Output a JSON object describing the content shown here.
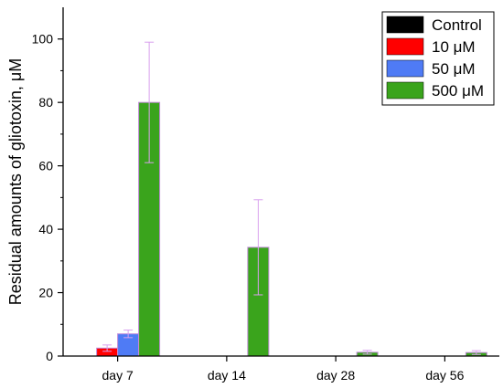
{
  "chart_data": {
    "type": "bar",
    "title": "",
    "xlabel": "",
    "ylabel": "Residual amounts of gliotoxin, μM",
    "ylim": [
      0,
      110
    ],
    "yticks": [
      0,
      20,
      40,
      60,
      80,
      100
    ],
    "grid": false,
    "legend_position": "top-right",
    "categories": [
      "day 7",
      "day 14",
      "day 28",
      "day 56"
    ],
    "series": [
      {
        "name": "Control",
        "color": "#000000",
        "values": [
          0,
          0,
          0,
          0
        ],
        "errors": [
          0,
          0,
          0,
          0
        ]
      },
      {
        "name": "10 μM",
        "color": "#ff0000",
        "values": [
          2.5,
          0,
          0,
          0
        ],
        "errors": [
          1.0,
          0,
          0,
          0
        ]
      },
      {
        "name": "50 μM",
        "color": "#4f7bf5",
        "values": [
          7.0,
          0,
          0,
          0
        ],
        "errors": [
          1.2,
          0,
          0,
          0
        ]
      },
      {
        "name": "500 μM",
        "color": "#3aa41c",
        "values": [
          80.0,
          34.3,
          1.2,
          1.1
        ],
        "errors": [
          19.0,
          15.0,
          0.6,
          0.6
        ]
      }
    ]
  }
}
